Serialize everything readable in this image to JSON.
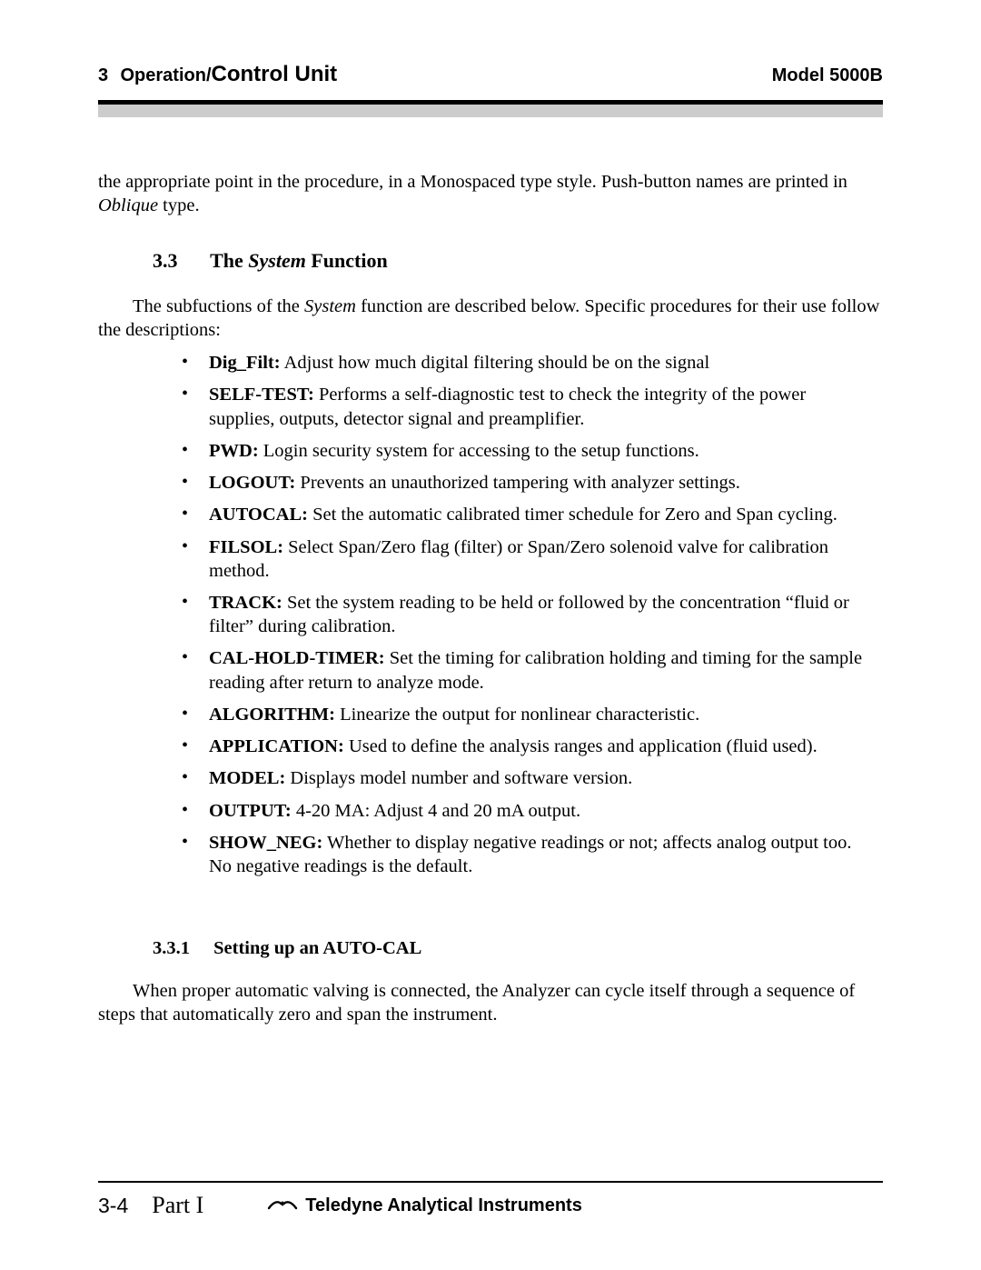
{
  "colors": {
    "text": "#000000",
    "background": "#ffffff",
    "rule_dark": "#000000",
    "rule_gray": "#cccccc"
  },
  "typography": {
    "body_family": "Times New Roman",
    "header_family": "Arial",
    "body_size_pt": 15,
    "heading_size_pt": 16
  },
  "header": {
    "chapter_number": "3",
    "chapter_title_plain": "Operation/",
    "chapter_title_bold": "Control Unit",
    "model": "Model 5000B"
  },
  "lead_paragraph": {
    "pre": "the appropriate point in the procedure, in a Monospaced type style. Push-button names are printed in ",
    "oblique_word": "Oblique",
    "post": " type."
  },
  "section": {
    "number": "3.3",
    "title_pre": "The ",
    "title_italic": "System",
    "title_post": " Function"
  },
  "intro": {
    "pre": "The subfuctions of the ",
    "italic": "System",
    "post": " function are described below. Specific procedures for their use follow the descriptions:"
  },
  "functions": [
    {
      "term": "Dig_Filt:",
      "desc": " Adjust how much digital filtering should be on the signal"
    },
    {
      "term": "SELF-TEST:",
      "desc": " Performs a self-diagnostic test to check the integrity of the power supplies, outputs, detector signal and preamplifier."
    },
    {
      "term": "PWD:",
      "desc": " Login security system for accessing to the setup functions."
    },
    {
      "term": "LOGOUT:",
      "desc": " Prevents an unauthorized tampering with analyzer settings."
    },
    {
      "term": "AUTOCAL:",
      "desc": " Set the automatic calibrated timer schedule for Zero and Span cycling."
    },
    {
      "term": "FILSOL:",
      "desc": " Select Span/Zero flag (filter) or Span/Zero solenoid valve for calibration method."
    },
    {
      "term": "TRACK:",
      "desc": " Set the system reading to be held or followed by the concentration “fluid or filter” during calibration."
    },
    {
      "term": "CAL-HOLD-TIMER:",
      "desc": " Set the timing for calibration holding and timing for the sample reading after return to analyze mode."
    },
    {
      "term": "ALGORITHM:",
      "desc": " Linearize the output for nonlinear characteristic."
    },
    {
      "term": "APPLICATION:",
      "desc": " Used to define the analysis ranges and application (fluid used)."
    },
    {
      "term": "MODEL:",
      "desc": " Displays model number and software version."
    },
    {
      "term": "OUTPUT:",
      "desc": " 4-20 MA: Adjust 4 and 20 mA output."
    },
    {
      "term": "SHOW_NEG:",
      "desc": " Whether to display negative readings or not; affects analog output too.  No negative readings is the default."
    }
  ],
  "subsection": {
    "number": "3.3.1",
    "title": "Setting up an AUTO-CAL",
    "paragraph": "When proper automatic valving is connected, the Analyzer can cycle itself through a sequence of steps that automatically zero and span the instrument."
  },
  "footer": {
    "page_number": "3-4",
    "part": "Part I",
    "brand": "Teledyne Analytical Instruments"
  }
}
